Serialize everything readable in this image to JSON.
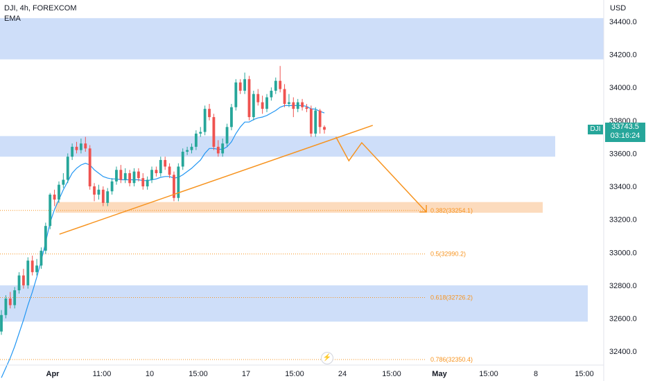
{
  "header": {
    "title": "DJI, 4h, FOREXCOM",
    "indicator": "EMA"
  },
  "axis": {
    "currency": "USD",
    "y_ticks": [
      "34400.0",
      "34200.0",
      "34000.0",
      "33800.0",
      "33600.0",
      "33400.0",
      "33200.0",
      "33000.0",
      "32800.0",
      "32600.0",
      "32400.0"
    ],
    "x_ticks": [
      "Apr",
      "11:00",
      "10",
      "15:00",
      "17",
      "15:00",
      "24",
      "15:00",
      "May",
      "15:00",
      "8",
      "15:00"
    ]
  },
  "price_badge": {
    "symbol": "DJI",
    "price": "33743.5",
    "countdown": "03:16:24"
  },
  "fib_labels": [
    {
      "text": "0.382(33254.1)",
      "level": 33254.1
    },
    {
      "text": "0.5(32990.2)",
      "level": 32990.2
    },
    {
      "text": "0.618(32726.2)",
      "level": 32726.2
    },
    {
      "text": "0.786(32350.4)",
      "level": 32350.4
    }
  ],
  "colors": {
    "up": "#26a69a",
    "down": "#ef5350",
    "ema": "#2196f3",
    "zone_blue": "#c9daf8",
    "zone_orange": "#fbd5b1",
    "trend": "#f7931e",
    "fib": "#f7931e"
  },
  "chart_data": {
    "type": "candlestick",
    "symbol": "DJI",
    "interval": "4h",
    "ylim": [
      32220,
      34530
    ],
    "zones": [
      {
        "type": "supply",
        "from": 34170,
        "to": 34420
      },
      {
        "type": "demand",
        "from": 33580,
        "to": 33705
      },
      {
        "type": "target",
        "from": 33240,
        "to": 33305
      },
      {
        "type": "demand",
        "from": 32580,
        "to": 32800
      }
    ],
    "trendline": [
      [
        0.092,
        33110
      ],
      [
        0.577,
        33770
      ]
    ],
    "projection": [
      [
        0.52,
        33700
      ],
      [
        0.54,
        33555
      ],
      [
        0.56,
        33665
      ],
      [
        0.66,
        33245
      ]
    ],
    "candles": [
      [
        32520,
        32620,
        32500,
        32650
      ],
      [
        32620,
        32720,
        32600,
        32740
      ],
      [
        32720,
        32680,
        32660,
        32760
      ],
      [
        32680,
        32770,
        32660,
        32790
      ],
      [
        32770,
        32860,
        32750,
        32880
      ],
      [
        32860,
        32800,
        32780,
        32900
      ],
      [
        32800,
        32950,
        32780,
        32970
      ],
      [
        32950,
        32880,
        32860,
        32980
      ],
      [
        32880,
        32920,
        32860,
        32960
      ],
      [
        32920,
        33010,
        32900,
        33030
      ],
      [
        33010,
        33160,
        32990,
        33180
      ],
      [
        33160,
        33350,
        33140,
        33360
      ],
      [
        33350,
        33320,
        33280,
        33380
      ],
      [
        33320,
        33410,
        33300,
        33430
      ],
      [
        33410,
        33440,
        33390,
        33480
      ],
      [
        33440,
        33580,
        33420,
        33600
      ],
      [
        33580,
        33640,
        33560,
        33660
      ],
      [
        33640,
        33620,
        33600,
        33670
      ],
      [
        33620,
        33660,
        33600,
        33690
      ],
      [
        33660,
        33630,
        33610,
        33700
      ],
      [
        33630,
        33400,
        33380,
        33650
      ],
      [
        33400,
        33350,
        33310,
        33420
      ],
      [
        33350,
        33380,
        33320,
        33410
      ],
      [
        33380,
        33300,
        33280,
        33400
      ],
      [
        33300,
        33370,
        33280,
        33390
      ],
      [
        33370,
        33430,
        33350,
        33450
      ],
      [
        33430,
        33500,
        33410,
        33520
      ],
      [
        33500,
        33440,
        33420,
        33530
      ],
      [
        33440,
        33480,
        33420,
        33510
      ],
      [
        33480,
        33420,
        33400,
        33500
      ],
      [
        33420,
        33490,
        33400,
        33510
      ],
      [
        33490,
        33450,
        33430,
        33510
      ],
      [
        33450,
        33400,
        33380,
        33480
      ],
      [
        33400,
        33440,
        33380,
        33460
      ],
      [
        33440,
        33500,
        33420,
        33520
      ],
      [
        33500,
        33480,
        33460,
        33520
      ],
      [
        33480,
        33560,
        33460,
        33580
      ],
      [
        33560,
        33520,
        33500,
        33580
      ],
      [
        33520,
        33470,
        33450,
        33540
      ],
      [
        33470,
        33330,
        33310,
        33490
      ],
      [
        33330,
        33520,
        33310,
        33540
      ],
      [
        33520,
        33610,
        33500,
        33630
      ],
      [
        33610,
        33620,
        33590,
        33640
      ],
      [
        33620,
        33640,
        33600,
        33660
      ],
      [
        33640,
        33720,
        33620,
        33740
      ],
      [
        33720,
        33730,
        33700,
        33760
      ],
      [
        33730,
        33870,
        33710,
        33890
      ],
      [
        33870,
        33820,
        33800,
        33900
      ],
      [
        33820,
        33640,
        33620,
        33840
      ],
      [
        33640,
        33600,
        33580,
        33680
      ],
      [
        33600,
        33660,
        33580,
        33690
      ],
      [
        33660,
        33760,
        33640,
        33780
      ],
      [
        33760,
        33880,
        33740,
        33900
      ],
      [
        33880,
        34030,
        33860,
        34050
      ],
      [
        34030,
        33980,
        33960,
        34050
      ],
      [
        33980,
        34050,
        33960,
        34090
      ],
      [
        34050,
        33820,
        33800,
        34070
      ],
      [
        33820,
        33960,
        33800,
        33980
      ],
      [
        33960,
        33910,
        33890,
        33990
      ],
      [
        33910,
        33870,
        33840,
        33950
      ],
      [
        33870,
        33940,
        33850,
        33960
      ],
      [
        33940,
        33980,
        33920,
        34000
      ],
      [
        33980,
        34040,
        33960,
        34060
      ],
      [
        34040,
        33990,
        33970,
        34130
      ],
      [
        33990,
        33900,
        33880,
        34020
      ],
      [
        33900,
        33910,
        33880,
        33960
      ],
      [
        33910,
        33870,
        33820,
        33940
      ],
      [
        33870,
        33910,
        33850,
        33930
      ],
      [
        33910,
        33880,
        33860,
        33930
      ],
      [
        33880,
        33870,
        33850,
        33900
      ],
      [
        33870,
        33720,
        33700,
        33890
      ],
      [
        33720,
        33860,
        33700,
        33880
      ],
      [
        33860,
        33760,
        33720,
        33870
      ],
      [
        33760,
        33743.5,
        33720,
        33770
      ]
    ],
    "ema": [
      32240,
      32300,
      32360,
      32430,
      32510,
      32590,
      32680,
      32760,
      32850,
      32950,
      33060,
      33180,
      33260,
      33320,
      33380,
      33430,
      33480,
      33510,
      33530,
      33540,
      33530,
      33500,
      33480,
      33460,
      33450,
      33445,
      33445,
      33440,
      33440,
      33440,
      33440,
      33440,
      33435,
      33435,
      33440,
      33445,
      33455,
      33460,
      33460,
      33450,
      33455,
      33470,
      33490,
      33510,
      33535,
      33560,
      33600,
      33630,
      33630,
      33625,
      33625,
      33640,
      33670,
      33720,
      33760,
      33790,
      33790,
      33805,
      33815,
      33820,
      33830,
      33845,
      33860,
      33880,
      33890,
      33890,
      33890,
      33890,
      33890,
      33885,
      33870,
      33868,
      33855,
      33845
    ]
  }
}
